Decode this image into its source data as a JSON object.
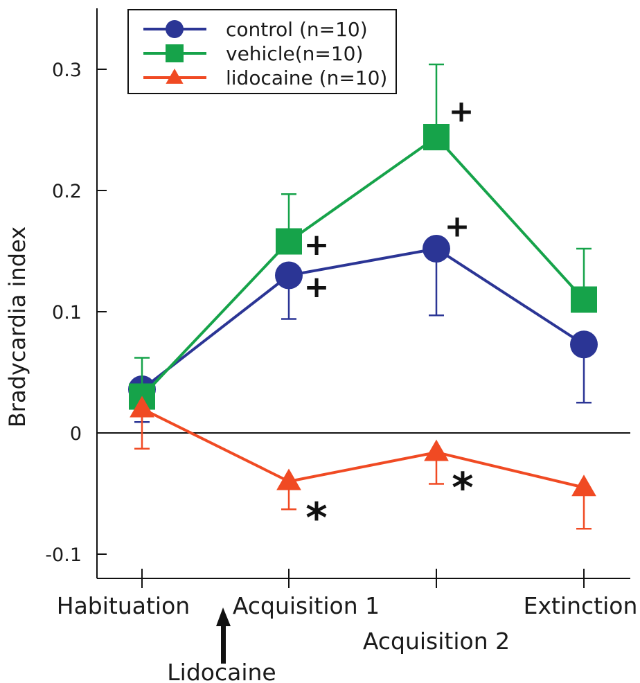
{
  "chart_data": {
    "type": "line",
    "title": "",
    "xlabel": "",
    "ylabel": "Bradycardia index",
    "ylim": [
      -0.12,
      0.35
    ],
    "yticks": [
      -0.1,
      0,
      0.1,
      0.2,
      0.3
    ],
    "ytick_labels": [
      "-0.1",
      "0",
      "0.1",
      "0.2",
      "0.3"
    ],
    "categories": [
      "Habituation",
      "Acquisition 1",
      "Acquisition 2",
      "Extinction"
    ],
    "zero_line": true,
    "grid": false,
    "legend_position": "top-left",
    "series": [
      {
        "name": "control (n=10)",
        "marker": "circle",
        "color": "#2b3595",
        "values": [
          0.036,
          0.13,
          0.152,
          0.073
        ],
        "error_upper": [
          null,
          null,
          null,
          null
        ],
        "error_lower": [
          0.009,
          0.094,
          0.097,
          0.025
        ]
      },
      {
        "name": "vehicle(n=10)",
        "marker": "square",
        "color": "#16a34a",
        "values": [
          0.03,
          0.158,
          0.244,
          0.11
        ],
        "error_upper": [
          0.062,
          0.197,
          0.304,
          0.152
        ],
        "error_lower": [
          null,
          null,
          null,
          null
        ]
      },
      {
        "name": "lidocaine (n=10)",
        "marker": "triangle",
        "color": "#f04a23",
        "values": [
          0.02,
          -0.04,
          -0.016,
          -0.045
        ],
        "error_upper": [
          null,
          null,
          null,
          null
        ],
        "error_lower": [
          -0.013,
          -0.063,
          -0.042,
          -0.079
        ]
      }
    ],
    "annotations": [
      {
        "text": "+",
        "category_index": 1,
        "value": 0.155,
        "dx": 40
      },
      {
        "text": "+",
        "category_index": 1,
        "value": 0.12,
        "dx": 40
      },
      {
        "text": "+",
        "category_index": 2,
        "value": 0.265,
        "dx": 36
      },
      {
        "text": "+",
        "category_index": 2,
        "value": 0.17,
        "dx": 30
      },
      {
        "text": "*",
        "category_index": 1,
        "value": -0.06,
        "dx": 40
      },
      {
        "text": "*",
        "category_index": 2,
        "value": -0.035,
        "dx": 38
      }
    ],
    "drug_marker": {
      "label": "Lidocaine",
      "position": "between Habituation and Acquisition 1"
    }
  }
}
